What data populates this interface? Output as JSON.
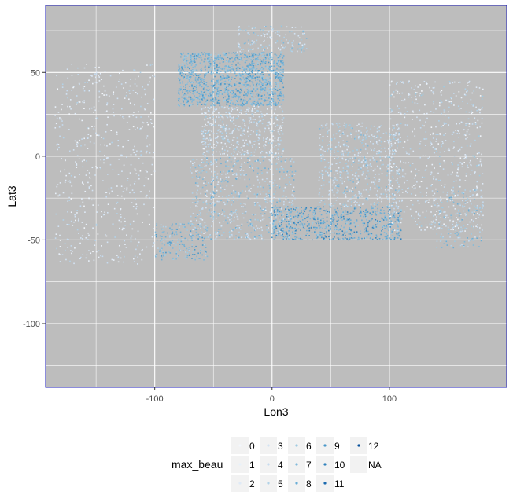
{
  "chart_data": {
    "type": "scatter",
    "xlabel": "Lon3",
    "ylabel": "Lat3",
    "xlim": [
      -193,
      200
    ],
    "ylim": [
      -138,
      90
    ],
    "x_ticks": [
      {
        "value": -100,
        "label": "-100"
      },
      {
        "value": 0,
        "label": "0"
      },
      {
        "value": 100,
        "label": "100"
      }
    ],
    "y_ticks": [
      {
        "value": 50,
        "label": "50"
      },
      {
        "value": 0,
        "label": "0"
      },
      {
        "value": -50,
        "label": "-50"
      },
      {
        "value": -100,
        "label": "-100"
      }
    ],
    "grid": true,
    "panel_background": "#bdbdbd",
    "panel_border": "#1a1ab8",
    "grid_color": "#ffffff",
    "legend": {
      "title": "max_beau",
      "position": "bottom",
      "entries": [
        {
          "label": "0",
          "color": "#f3f7fc"
        },
        {
          "label": "1",
          "color": "#e9f1fa"
        },
        {
          "label": "2",
          "color": "#dfeaf7"
        },
        {
          "label": "3",
          "color": "#d3e3f3"
        },
        {
          "label": "4",
          "color": "#c6dbef"
        },
        {
          "label": "5",
          "color": "#b2d2e8"
        },
        {
          "label": "6",
          "color": "#9ecae1"
        },
        {
          "label": "7",
          "color": "#80b9da"
        },
        {
          "label": "8",
          "color": "#6baed6"
        },
        {
          "label": "9",
          "color": "#4a98c9"
        },
        {
          "label": "10",
          "color": "#3182bd"
        },
        {
          "label": "11",
          "color": "#1c6aaf"
        },
        {
          "label": "12",
          "color": "#08519c"
        },
        {
          "label": "NA",
          "color": "#7f7f7f"
        }
      ]
    },
    "point_regions": [
      {
        "lon": [
          -80,
          10
        ],
        "lat": [
          30,
          62
        ],
        "levels": [
          6,
          9
        ],
        "count": 1400
      },
      {
        "lon": [
          -60,
          10
        ],
        "lat": [
          0,
          30
        ],
        "levels": [
          1,
          6
        ],
        "count": 500
      },
      {
        "lon": [
          -70,
          20
        ],
        "lat": [
          -50,
          0
        ],
        "levels": [
          2,
          8
        ],
        "count": 700
      },
      {
        "lon": [
          0,
          110
        ],
        "lat": [
          -50,
          -30
        ],
        "levels": [
          6,
          10
        ],
        "count": 700
      },
      {
        "lon": [
          40,
          110
        ],
        "lat": [
          -30,
          20
        ],
        "levels": [
          2,
          7
        ],
        "count": 650
      },
      {
        "lon": [
          100,
          180
        ],
        "lat": [
          -45,
          45
        ],
        "levels": [
          0,
          6
        ],
        "count": 650
      },
      {
        "lon": [
          -185,
          -100
        ],
        "lat": [
          -65,
          55
        ],
        "levels": [
          0,
          5
        ],
        "count": 550
      },
      {
        "lon": [
          -100,
          -55
        ],
        "lat": [
          -62,
          -40
        ],
        "levels": [
          5,
          9
        ],
        "count": 200
      },
      {
        "lon": [
          -30,
          30
        ],
        "lat": [
          62,
          78
        ],
        "levels": [
          2,
          7
        ],
        "count": 150
      },
      {
        "lon": [
          140,
          180
        ],
        "lat": [
          -55,
          -20
        ],
        "levels": [
          3,
          8
        ],
        "count": 150
      }
    ]
  }
}
